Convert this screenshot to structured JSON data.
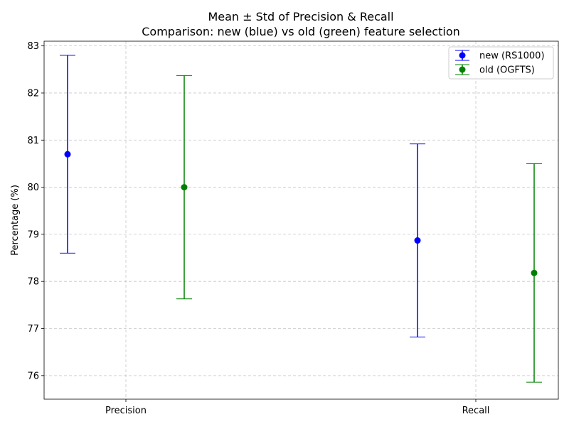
{
  "chart_data": {
    "type": "scatter",
    "title": "Mean ± Std of Precision & Recall",
    "subtitle": "Comparison: new (blue) vs old (green) feature selection",
    "xlabel": "",
    "ylabel": "Percentage (%)",
    "categories": [
      "Precision",
      "Recall"
    ],
    "ylim": [
      75.5,
      83.1
    ],
    "yticks": [
      "76",
      "77",
      "78",
      "79",
      "80",
      "81",
      "82",
      "83"
    ],
    "grid": true,
    "legend_position": "top-right",
    "series": [
      {
        "name": "new (RS1000)",
        "color": "#0000ff",
        "values": [
          80.7,
          78.87
        ],
        "errors": [
          2.1,
          2.05
        ]
      },
      {
        "name": "old (OGFTS)",
        "color": "#008000",
        "values": [
          80.0,
          78.18
        ],
        "errors": [
          2.37,
          2.32
        ]
      }
    ]
  }
}
